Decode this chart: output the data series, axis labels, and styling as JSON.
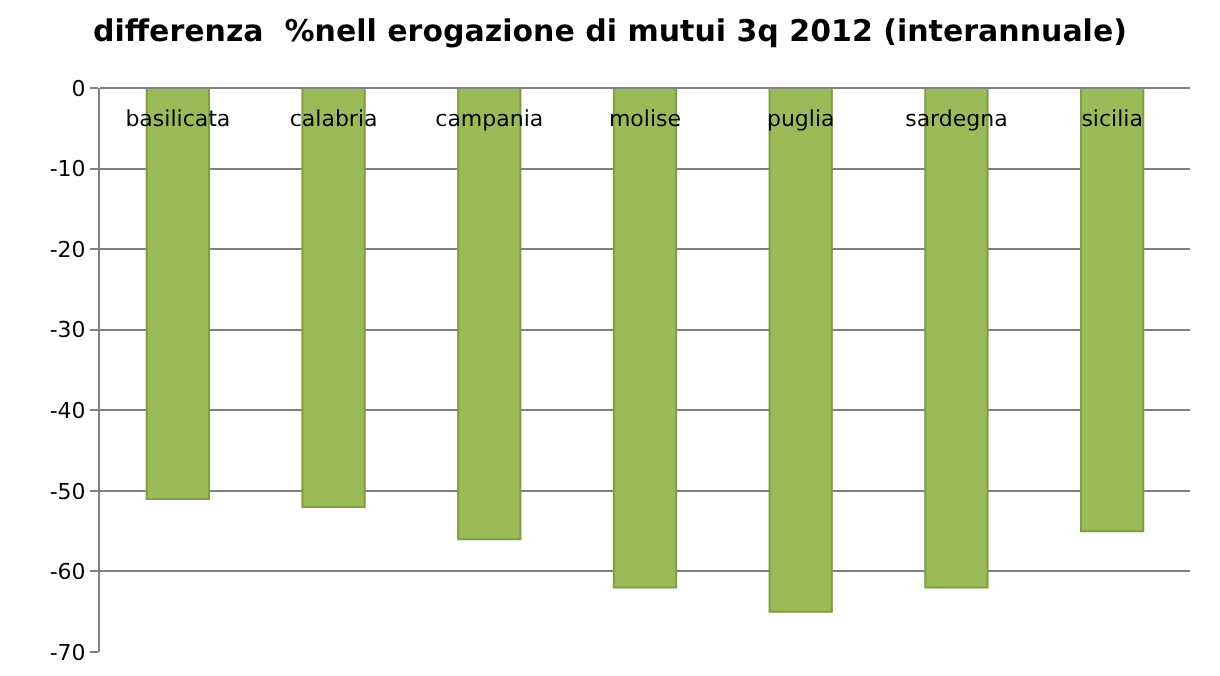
{
  "chart_data": {
    "type": "bar",
    "title": "differenza  %nell erogazione di mutui 3q 2012 (interannuale)",
    "categories": [
      "basilicata",
      "calabria",
      "campania",
      "molise",
      "puglia",
      "sardegna",
      "sicilia"
    ],
    "values": [
      -51,
      -52,
      -56,
      -62,
      -65,
      -62,
      -55
    ],
    "color": "#9bbb59",
    "ylim": [
      -70,
      0
    ],
    "yticks": [
      -70,
      -60,
      -50,
      -40,
      -30,
      -20,
      -10,
      0
    ],
    "grid": "y"
  }
}
